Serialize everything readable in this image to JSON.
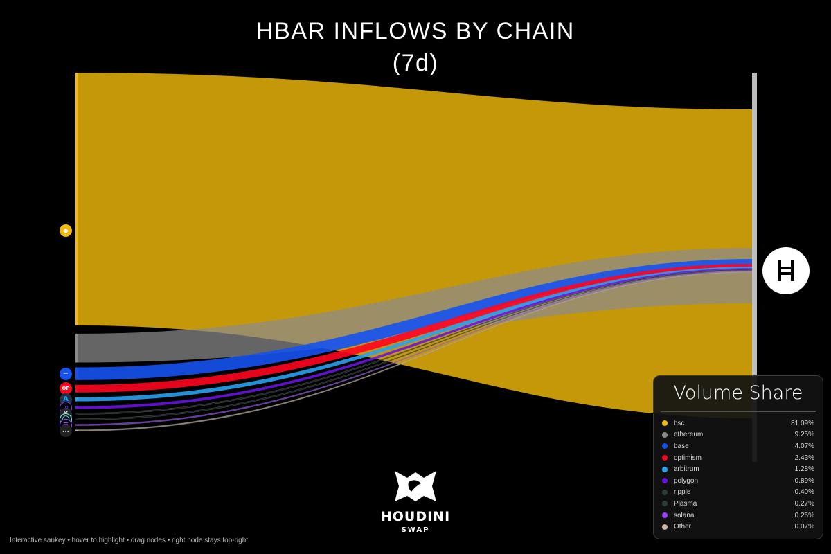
{
  "chart_data": {
    "type": "sankey",
    "title": "HBAR INFLOWS BY CHAIN",
    "subtitle": "(7d)",
    "target": "HBAR",
    "sources": [
      {
        "name": "bsc",
        "value": 81.09,
        "color": "#F0B90B"
      },
      {
        "name": "ethereum",
        "value": 9.25,
        "color": "#8C8C8C"
      },
      {
        "name": "base",
        "value": 4.07,
        "color": "#1652F0"
      },
      {
        "name": "optimism",
        "value": 2.43,
        "color": "#FF0420"
      },
      {
        "name": "arbitrum",
        "value": 1.28,
        "color": "#28A0F0"
      },
      {
        "name": "polygon",
        "value": 0.89,
        "color": "#6A14E0"
      },
      {
        "name": "ripple",
        "value": 0.4,
        "color": "#23292F"
      },
      {
        "name": "Plasma",
        "value": 0.27,
        "color": "#1C2B28"
      },
      {
        "name": "solana",
        "value": 0.25,
        "color": "#9945FF"
      },
      {
        "name": "Other",
        "value": 0.07,
        "color": "#C8B4A0"
      }
    ],
    "unit": "%"
  },
  "legend": {
    "title": "Volume Share"
  },
  "footer": {
    "note": "Interactive sankey • hover to highlight • drag nodes • right node stays top-right"
  },
  "brand": {
    "name": "HOUDINI",
    "sub": "SWAP"
  },
  "icons": [
    "bsc-icon",
    "ethereum-icon",
    "base-icon",
    "optimism-icon",
    "arbitrum-icon",
    "polygon-icon",
    "ripple-icon",
    "plasma-icon",
    "solana-icon",
    "other-icon",
    "hbar-icon",
    "houdini-logo-icon"
  ]
}
